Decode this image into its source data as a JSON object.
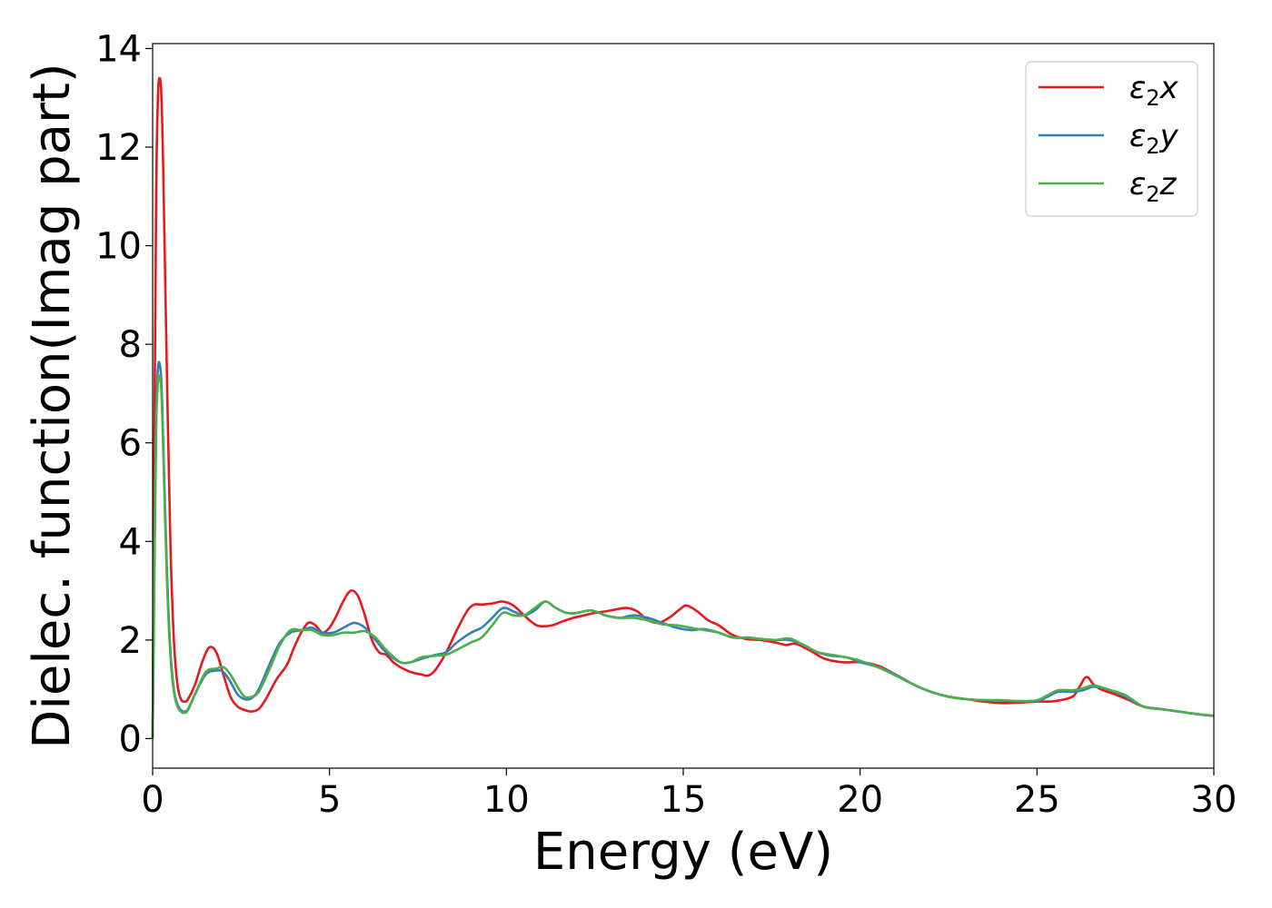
{
  "chart_data": {
    "type": "line",
    "xlabel": "Energy (eV)",
    "ylabel": "Dielec. function(Imag part)",
    "xlim": [
      0,
      30
    ],
    "ylim": [
      -0.6,
      14.1
    ],
    "xticks": [
      0,
      5,
      10,
      15,
      20,
      25,
      30
    ],
    "yticks": [
      0,
      2,
      4,
      6,
      8,
      10,
      12,
      14
    ],
    "grid": false,
    "legend_position": "top-right",
    "series": [
      {
        "name": "ε₂x",
        "legend": {
          "base": "ε",
          "sub": "2",
          "tail": "x"
        },
        "color": "#e41a1c",
        "x": [
          0,
          0.05,
          0.1,
          0.15,
          0.2,
          0.25,
          0.3,
          0.4,
          0.5,
          0.6,
          0.7,
          0.8,
          0.9,
          1.0,
          1.2,
          1.4,
          1.6,
          1.8,
          2.0,
          2.2,
          2.4,
          2.6,
          2.8,
          3.0,
          3.2,
          3.5,
          3.8,
          4.0,
          4.2,
          4.4,
          4.6,
          4.8,
          5.0,
          5.2,
          5.4,
          5.6,
          5.8,
          6.0,
          6.2,
          6.4,
          6.6,
          6.8,
          7.0,
          7.3,
          7.6,
          7.8,
          8.0,
          8.3,
          8.6,
          8.9,
          9.1,
          9.3,
          9.6,
          9.9,
          10.2,
          10.5,
          10.8,
          11.0,
          11.3,
          11.6,
          11.9,
          12.2,
          12.5,
          12.8,
          13.1,
          13.4,
          13.7,
          14.0,
          14.3,
          14.6,
          14.9,
          15.1,
          15.4,
          15.7,
          16.0,
          16.4,
          16.8,
          17.2,
          17.6,
          17.9,
          18.2,
          18.6,
          19.0,
          19.5,
          20.0,
          20.5,
          21.0,
          21.5,
          22.0,
          22.5,
          23.0,
          23.5,
          24.0,
          24.5,
          25.0,
          25.5,
          26.0,
          26.2,
          26.4,
          26.6,
          26.8,
          27.2,
          27.6,
          28.0,
          28.5,
          29.0,
          29.5,
          30.0
        ],
        "y": [
          0.0,
          6.0,
          11.0,
          13.0,
          13.4,
          13.0,
          11.5,
          7.5,
          4.0,
          2.0,
          1.1,
          0.8,
          0.75,
          0.8,
          1.1,
          1.55,
          1.85,
          1.75,
          1.3,
          0.85,
          0.65,
          0.58,
          0.55,
          0.6,
          0.8,
          1.2,
          1.5,
          1.85,
          2.15,
          2.35,
          2.3,
          2.15,
          2.25,
          2.5,
          2.8,
          3.0,
          2.9,
          2.5,
          2.0,
          1.75,
          1.7,
          1.55,
          1.45,
          1.35,
          1.3,
          1.28,
          1.4,
          1.75,
          2.2,
          2.6,
          2.72,
          2.72,
          2.74,
          2.78,
          2.7,
          2.5,
          2.32,
          2.28,
          2.3,
          2.38,
          2.45,
          2.5,
          2.55,
          2.58,
          2.62,
          2.65,
          2.58,
          2.4,
          2.35,
          2.45,
          2.62,
          2.7,
          2.58,
          2.4,
          2.3,
          2.1,
          2.02,
          2.0,
          1.95,
          1.9,
          1.92,
          1.78,
          1.62,
          1.55,
          1.55,
          1.48,
          1.3,
          1.1,
          0.95,
          0.85,
          0.8,
          0.75,
          0.72,
          0.73,
          0.75,
          0.76,
          0.85,
          1.05,
          1.25,
          1.1,
          1.0,
          0.9,
          0.78,
          0.65,
          0.6,
          0.55,
          0.5,
          0.46
        ]
      },
      {
        "name": "ε₂y",
        "legend": {
          "base": "ε",
          "sub": "2",
          "tail": "y"
        },
        "color": "#377eb8",
        "x": [
          0,
          0.05,
          0.1,
          0.15,
          0.2,
          0.25,
          0.3,
          0.4,
          0.5,
          0.6,
          0.7,
          0.8,
          0.9,
          1.0,
          1.2,
          1.5,
          1.8,
          2.0,
          2.2,
          2.4,
          2.6,
          2.8,
          3.0,
          3.3,
          3.6,
          3.9,
          4.2,
          4.5,
          4.8,
          5.1,
          5.4,
          5.7,
          6.0,
          6.3,
          6.6,
          7.0,
          7.3,
          7.6,
          8.0,
          8.3,
          8.6,
          9.0,
          9.3,
          9.6,
          9.9,
          10.2,
          10.5,
          10.8,
          11.1,
          11.4,
          11.7,
          12.0,
          12.4,
          12.8,
          13.2,
          13.6,
          14.0,
          14.4,
          14.8,
          15.2,
          15.6,
          16.0,
          16.4,
          16.8,
          17.2,
          17.6,
          18.0,
          18.4,
          18.8,
          19.2,
          19.6,
          20.0,
          20.5,
          21.0,
          21.5,
          22.0,
          22.5,
          23.0,
          23.5,
          24.0,
          24.5,
          25.0,
          25.3,
          25.6,
          26.0,
          26.3,
          26.6,
          27.0,
          27.5,
          28.0,
          28.5,
          29.0,
          29.5,
          30.0
        ],
        "y": [
          0.0,
          3.5,
          6.5,
          7.5,
          7.6,
          7.2,
          6.0,
          3.5,
          1.8,
          1.0,
          0.7,
          0.58,
          0.55,
          0.6,
          0.9,
          1.3,
          1.38,
          1.35,
          1.15,
          0.9,
          0.8,
          0.82,
          1.0,
          1.5,
          1.95,
          2.15,
          2.2,
          2.25,
          2.15,
          2.15,
          2.25,
          2.35,
          2.25,
          2.0,
          1.75,
          1.55,
          1.55,
          1.62,
          1.7,
          1.75,
          1.95,
          2.15,
          2.25,
          2.45,
          2.65,
          2.58,
          2.5,
          2.6,
          2.78,
          2.65,
          2.55,
          2.55,
          2.6,
          2.5,
          2.45,
          2.5,
          2.45,
          2.35,
          2.25,
          2.2,
          2.22,
          2.15,
          2.05,
          2.05,
          2.02,
          2.0,
          2.0,
          1.9,
          1.75,
          1.68,
          1.65,
          1.55,
          1.45,
          1.3,
          1.1,
          0.95,
          0.85,
          0.8,
          0.78,
          0.77,
          0.76,
          0.76,
          0.85,
          0.95,
          0.95,
          0.98,
          1.05,
          1.0,
          0.85,
          0.65,
          0.6,
          0.55,
          0.5,
          0.46
        ]
      },
      {
        "name": "ε₂z",
        "legend": {
          "base": "ε",
          "sub": "2",
          "tail": "z"
        },
        "color": "#4daf4a",
        "x": [
          0,
          0.05,
          0.1,
          0.15,
          0.2,
          0.25,
          0.3,
          0.4,
          0.5,
          0.6,
          0.7,
          0.8,
          0.9,
          1.0,
          1.2,
          1.5,
          1.8,
          2.0,
          2.2,
          2.4,
          2.6,
          2.8,
          3.0,
          3.3,
          3.6,
          3.9,
          4.2,
          4.5,
          4.8,
          5.1,
          5.4,
          5.7,
          6.0,
          6.3,
          6.6,
          7.0,
          7.3,
          7.6,
          8.0,
          8.3,
          8.6,
          9.0,
          9.3,
          9.6,
          9.9,
          10.2,
          10.5,
          10.8,
          11.1,
          11.4,
          11.7,
          12.0,
          12.4,
          12.8,
          13.2,
          13.6,
          14.0,
          14.4,
          14.8,
          15.2,
          15.6,
          16.0,
          16.4,
          16.8,
          17.2,
          17.6,
          18.0,
          18.4,
          18.8,
          19.2,
          19.6,
          20.0,
          20.5,
          21.0,
          21.5,
          22.0,
          22.5,
          23.0,
          23.5,
          24.0,
          24.5,
          25.0,
          25.3,
          25.6,
          26.0,
          26.3,
          26.6,
          27.0,
          27.5,
          28.0,
          28.5,
          29.0,
          29.5,
          30.0
        ],
        "y": [
          0.0,
          3.3,
          6.3,
          7.2,
          7.35,
          7.0,
          5.8,
          3.3,
          1.7,
          0.95,
          0.65,
          0.55,
          0.52,
          0.58,
          0.9,
          1.35,
          1.42,
          1.45,
          1.3,
          1.05,
          0.85,
          0.85,
          0.95,
          1.4,
          1.9,
          2.2,
          2.2,
          2.2,
          2.1,
          2.1,
          2.15,
          2.15,
          2.18,
          2.05,
          1.8,
          1.55,
          1.55,
          1.65,
          1.68,
          1.7,
          1.8,
          1.95,
          2.05,
          2.3,
          2.55,
          2.5,
          2.5,
          2.65,
          2.78,
          2.65,
          2.55,
          2.55,
          2.6,
          2.5,
          2.45,
          2.45,
          2.4,
          2.32,
          2.3,
          2.25,
          2.2,
          2.15,
          2.05,
          2.05,
          2.02,
          2.0,
          2.03,
          1.9,
          1.75,
          1.7,
          1.65,
          1.58,
          1.45,
          1.28,
          1.1,
          0.95,
          0.85,
          0.8,
          0.78,
          0.78,
          0.76,
          0.78,
          0.88,
          0.98,
          0.98,
          1.02,
          1.08,
          1.0,
          0.88,
          0.65,
          0.6,
          0.55,
          0.5,
          0.46
        ]
      }
    ]
  }
}
